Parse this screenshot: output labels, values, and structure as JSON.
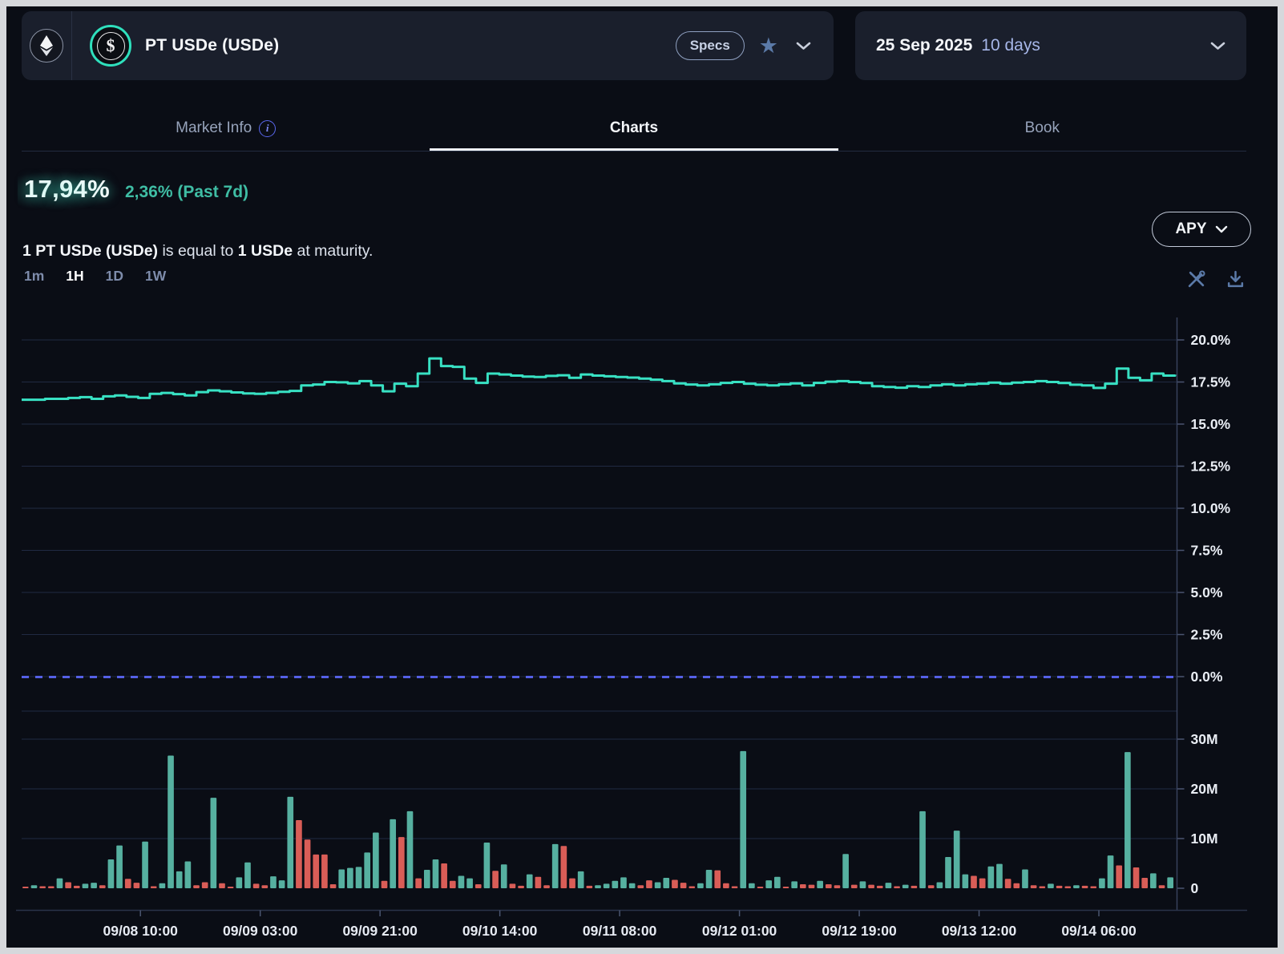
{
  "header": {
    "asset_title": "PT USDe (USDe)",
    "specs_label": "Specs",
    "maturity_date": "25 Sep 2025",
    "maturity_duration": "10 days"
  },
  "icons": {
    "network": "ethereum-icon",
    "token": "usde-dollar-coin-icon",
    "favorite": "star-icon",
    "expand": "chevron-down-icon",
    "tab_info": "info-icon",
    "chart_tools": "chart-tools-icon",
    "download": "download-icon"
  },
  "tabs": {
    "items": [
      {
        "label": "Market Info"
      },
      {
        "label": "Charts"
      },
      {
        "label": "Book"
      }
    ],
    "active": "Charts"
  },
  "stats": {
    "apy_value": "17,94%",
    "apy_change": "2,36% (Past 7d)",
    "desc_p1": "1 PT USDe (USDe)",
    "desc_p2": " is equal to ",
    "desc_p3": "1 USDe",
    "desc_p4": " at maturity.",
    "metric_label": "APY"
  },
  "toolbar": {
    "ranges": [
      "1m",
      "1H",
      "1D",
      "1W"
    ],
    "active_range": "1H"
  },
  "x_axis": {
    "labels": [
      "09/08 10:00",
      "09/09 03:00",
      "09/09 21:00",
      "09/10 14:00",
      "09/11 08:00",
      "09/12 01:00",
      "09/12 19:00",
      "09/13 12:00",
      "09/14 06:00"
    ]
  },
  "chart_data": [
    {
      "type": "line",
      "name": "implied_apy",
      "title": "PT USDe implied APY (1H)",
      "unit": "%",
      "step": true,
      "color": "#38e1c3",
      "ylim": [
        0,
        21.7
      ],
      "y_ticks": [
        20,
        17.5,
        15,
        12.5,
        10,
        7.5,
        5,
        2.5,
        0
      ],
      "y_tick_labels": [
        "20.0%",
        "17.5%",
        "15.0%",
        "12.5%",
        "10.0%",
        "7.5%",
        "5.0%",
        "2.5%",
        "0.0%"
      ],
      "zero_line": {
        "value": 0,
        "style": "dashed",
        "color": "#5560e6"
      },
      "current_value": 17.94,
      "values": [
        16.45,
        16.45,
        16.5,
        16.5,
        16.55,
        16.6,
        16.5,
        16.65,
        16.7,
        16.62,
        16.55,
        16.8,
        16.85,
        16.78,
        16.7,
        16.9,
        17.0,
        16.95,
        16.88,
        16.82,
        16.8,
        16.85,
        16.92,
        16.97,
        17.3,
        17.35,
        17.5,
        17.48,
        17.42,
        17.55,
        17.3,
        16.95,
        17.4,
        17.25,
        18.0,
        18.9,
        18.45,
        18.4,
        17.7,
        17.45,
        18.0,
        17.95,
        17.88,
        17.82,
        17.8,
        17.86,
        17.9,
        17.75,
        17.95,
        17.88,
        17.84,
        17.8,
        17.76,
        17.7,
        17.64,
        17.55,
        17.42,
        17.35,
        17.3,
        17.36,
        17.45,
        17.5,
        17.4,
        17.34,
        17.3,
        17.36,
        17.42,
        17.3,
        17.45,
        17.52,
        17.55,
        17.5,
        17.44,
        17.25,
        17.2,
        17.16,
        17.25,
        17.2,
        17.3,
        17.36,
        17.3,
        17.36,
        17.4,
        17.46,
        17.4,
        17.46,
        17.5,
        17.55,
        17.5,
        17.44,
        17.34,
        17.3,
        17.15,
        17.4,
        18.3,
        17.75,
        17.6,
        18.0,
        17.88,
        17.94
      ]
    },
    {
      "type": "bar",
      "name": "volume",
      "unit": "M",
      "ylim": [
        0,
        33.9
      ],
      "y_ticks": [
        30,
        20,
        10,
        0
      ],
      "y_tick_labels": [
        "30M",
        "20M",
        "10M",
        "0"
      ],
      "up_color": "#56b0a0",
      "down_color": "#d95d57",
      "bars": [
        [
          0.3,
          "r"
        ],
        [
          0.6,
          "g"
        ],
        [
          0.4,
          "r"
        ],
        [
          0.4,
          "r"
        ],
        [
          2.0,
          "g"
        ],
        [
          1.2,
          "r"
        ],
        [
          0.5,
          "r"
        ],
        [
          0.9,
          "g"
        ],
        [
          1.1,
          "g"
        ],
        [
          0.6,
          "r"
        ],
        [
          5.8,
          "g"
        ],
        [
          8.6,
          "g"
        ],
        [
          1.9,
          "r"
        ],
        [
          1.1,
          "r"
        ],
        [
          9.4,
          "g"
        ],
        [
          0.4,
          "r"
        ],
        [
          1.0,
          "g"
        ],
        [
          26.7,
          "g"
        ],
        [
          3.4,
          "g"
        ],
        [
          5.4,
          "g"
        ],
        [
          0.6,
          "r"
        ],
        [
          1.2,
          "r"
        ],
        [
          18.2,
          "g"
        ],
        [
          1.0,
          "r"
        ],
        [
          0.3,
          "r"
        ],
        [
          2.2,
          "g"
        ],
        [
          5.2,
          "g"
        ],
        [
          0.9,
          "r"
        ],
        [
          0.6,
          "r"
        ],
        [
          2.4,
          "g"
        ],
        [
          1.6,
          "g"
        ],
        [
          18.4,
          "g"
        ],
        [
          13.7,
          "r"
        ],
        [
          9.8,
          "r"
        ],
        [
          6.8,
          "r"
        ],
        [
          6.8,
          "r"
        ],
        [
          0.8,
          "r"
        ],
        [
          3.8,
          "g"
        ],
        [
          4.1,
          "g"
        ],
        [
          4.3,
          "g"
        ],
        [
          7.2,
          "g"
        ],
        [
          11.2,
          "g"
        ],
        [
          1.5,
          "r"
        ],
        [
          13.9,
          "g"
        ],
        [
          10.3,
          "r"
        ],
        [
          15.5,
          "g"
        ],
        [
          2.0,
          "r"
        ],
        [
          3.7,
          "g"
        ],
        [
          5.8,
          "g"
        ],
        [
          5.0,
          "r"
        ],
        [
          1.5,
          "r"
        ],
        [
          2.5,
          "g"
        ],
        [
          2.0,
          "g"
        ],
        [
          0.8,
          "r"
        ],
        [
          9.2,
          "g"
        ],
        [
          3.5,
          "r"
        ],
        [
          4.8,
          "g"
        ],
        [
          0.9,
          "r"
        ],
        [
          0.5,
          "r"
        ],
        [
          2.8,
          "g"
        ],
        [
          2.3,
          "r"
        ],
        [
          0.6,
          "r"
        ],
        [
          8.9,
          "g"
        ],
        [
          8.5,
          "r"
        ],
        [
          2.0,
          "r"
        ],
        [
          3.4,
          "g"
        ],
        [
          0.5,
          "r"
        ],
        [
          0.6,
          "g"
        ],
        [
          0.9,
          "g"
        ],
        [
          1.5,
          "g"
        ],
        [
          2.2,
          "g"
        ],
        [
          1.0,
          "g"
        ],
        [
          0.6,
          "r"
        ],
        [
          1.6,
          "r"
        ],
        [
          1.2,
          "g"
        ],
        [
          2.1,
          "g"
        ],
        [
          1.7,
          "r"
        ],
        [
          1.1,
          "r"
        ],
        [
          0.4,
          "r"
        ],
        [
          1.0,
          "g"
        ],
        [
          3.7,
          "g"
        ],
        [
          3.6,
          "r"
        ],
        [
          1.0,
          "r"
        ],
        [
          0.4,
          "r"
        ],
        [
          27.6,
          "g"
        ],
        [
          1.0,
          "g"
        ],
        [
          0.3,
          "r"
        ],
        [
          1.6,
          "g"
        ],
        [
          2.3,
          "g"
        ],
        [
          0.3,
          "r"
        ],
        [
          1.4,
          "g"
        ],
        [
          0.8,
          "r"
        ],
        [
          0.7,
          "r"
        ],
        [
          1.5,
          "g"
        ],
        [
          0.8,
          "r"
        ],
        [
          0.6,
          "r"
        ],
        [
          6.9,
          "g"
        ],
        [
          0.7,
          "r"
        ],
        [
          1.4,
          "g"
        ],
        [
          0.7,
          "r"
        ],
        [
          0.5,
          "r"
        ],
        [
          1.1,
          "g"
        ],
        [
          0.4,
          "r"
        ],
        [
          0.7,
          "g"
        ],
        [
          0.5,
          "r"
        ],
        [
          15.5,
          "g"
        ],
        [
          0.6,
          "r"
        ],
        [
          1.2,
          "g"
        ],
        [
          6.3,
          "g"
        ],
        [
          11.6,
          "g"
        ],
        [
          2.8,
          "g"
        ],
        [
          2.5,
          "r"
        ],
        [
          2.0,
          "r"
        ],
        [
          4.4,
          "g"
        ],
        [
          4.9,
          "g"
        ],
        [
          1.9,
          "r"
        ],
        [
          1.0,
          "r"
        ],
        [
          3.8,
          "g"
        ],
        [
          0.6,
          "r"
        ],
        [
          0.4,
          "r"
        ],
        [
          0.9,
          "g"
        ],
        [
          0.5,
          "r"
        ],
        [
          0.4,
          "r"
        ],
        [
          0.6,
          "g"
        ],
        [
          0.5,
          "r"
        ],
        [
          0.4,
          "r"
        ],
        [
          2.0,
          "g"
        ],
        [
          6.6,
          "g"
        ],
        [
          4.6,
          "r"
        ],
        [
          27.4,
          "g"
        ],
        [
          4.2,
          "r"
        ],
        [
          2.1,
          "r"
        ],
        [
          3.0,
          "g"
        ],
        [
          0.6,
          "r"
        ],
        [
          2.2,
          "g"
        ]
      ]
    }
  ]
}
